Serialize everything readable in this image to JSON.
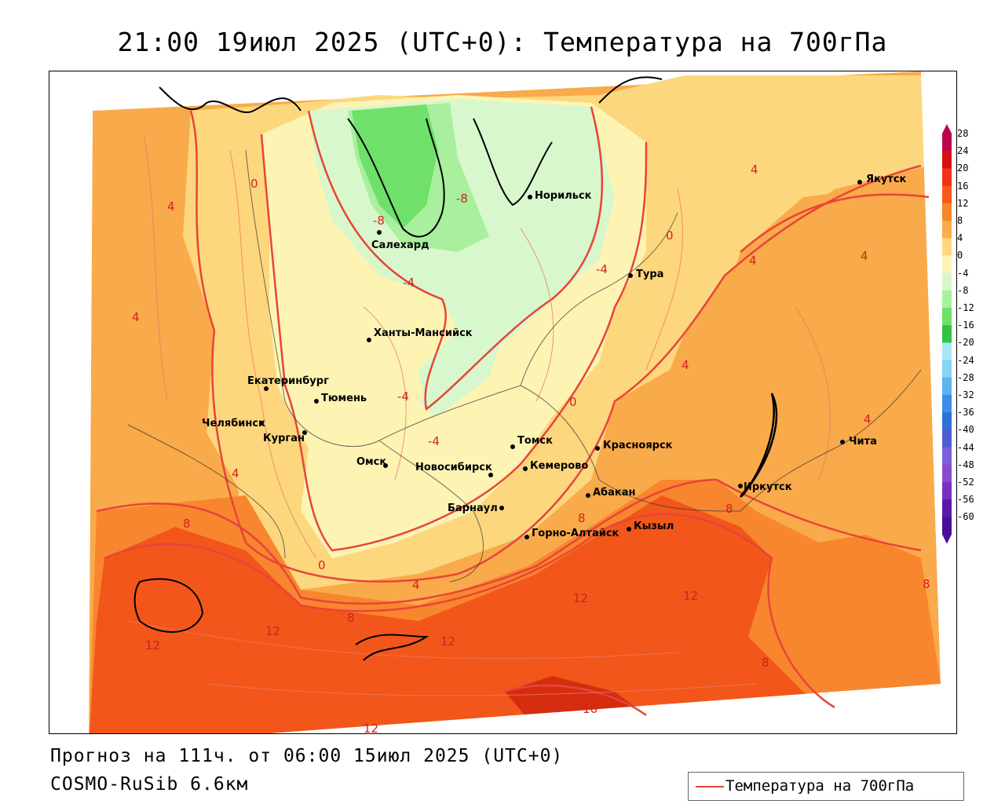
{
  "title": "21:00 19июл 2025 (UTC+0): Температура на 700гПа",
  "footer": {
    "forecast": "Прогноз на 111ч. от 06:00 15июл 2025 (UTC+0)",
    "model": "COSMO-RuSib 6.6км"
  },
  "legend": {
    "label": "Температура на 700гПа",
    "color": "#e8443a"
  },
  "colors": {
    "warm16": "#d52d10",
    "warm12": "#f2561a",
    "warm8": "#f8862e",
    "warm4": "#f9aa4a",
    "warm0": "#fdd77e",
    "neg0": "#fdf4b4",
    "neg4": "#d9f7cc",
    "neg8": "#a8ef9e",
    "neg12": "#6fe06a",
    "isoline": "#e8443a"
  },
  "colorbar": {
    "labels": [
      "28",
      "24",
      "20",
      "16",
      "12",
      "8",
      "4",
      "0",
      "-4",
      "-8",
      "-12",
      "-16",
      "-20",
      "-24",
      "-28",
      "-32",
      "-36",
      "-40",
      "-44",
      "-48",
      "-52",
      "-56",
      "-60"
    ],
    "colors": [
      "#c0004c",
      "#d80f12",
      "#f03315",
      "#f65a1a",
      "#f88528",
      "#f9ac48",
      "#fdd77e",
      "#fdf4b4",
      "#d9f7cc",
      "#a8ef9e",
      "#6fe06a",
      "#2fc441",
      "#a8e7f5",
      "#86d3f2",
      "#5cb3ef",
      "#3d8ee6",
      "#2f6fd8",
      "#4e5cd4",
      "#7a60dc",
      "#8a4bd0",
      "#7a2fc2",
      "#5a1aa8",
      "#4a0f98"
    ]
  },
  "cities": [
    {
      "name": "Якутск"
    },
    {
      "name": "Норильск"
    },
    {
      "name": "Салехард"
    },
    {
      "name": "Тура"
    },
    {
      "name": "Ханты-Мансийск"
    },
    {
      "name": "Екатеринбург"
    },
    {
      "name": "Тюмень"
    },
    {
      "name": "Челябинск"
    },
    {
      "name": "Курган"
    },
    {
      "name": "Омск"
    },
    {
      "name": "Новосибирск"
    },
    {
      "name": "Томск"
    },
    {
      "name": "Кемерово"
    },
    {
      "name": "Красноярск"
    },
    {
      "name": "Барнаул"
    },
    {
      "name": "Абакан"
    },
    {
      "name": "Горно-Алтайск"
    },
    {
      "name": "Кызыл"
    },
    {
      "name": "Иркутск"
    },
    {
      "name": "Чита"
    }
  ],
  "isolabels": [
    {
      "text": "0"
    },
    {
      "text": "4"
    },
    {
      "text": "4"
    },
    {
      "text": "-8"
    },
    {
      "text": "-8"
    },
    {
      "text": "-4"
    },
    {
      "text": "-4"
    },
    {
      "text": "0"
    },
    {
      "text": "4"
    },
    {
      "text": "4"
    },
    {
      "text": "4"
    },
    {
      "text": "4"
    },
    {
      "text": "-4"
    },
    {
      "text": "0"
    },
    {
      "text": "-4"
    },
    {
      "text": "4"
    },
    {
      "text": "4"
    },
    {
      "text": "8"
    },
    {
      "text": "0"
    },
    {
      "text": "4"
    },
    {
      "text": "8"
    },
    {
      "text": "8"
    },
    {
      "text": "8"
    },
    {
      "text": "12"
    },
    {
      "text": "12"
    },
    {
      "text": "12"
    },
    {
      "text": "12"
    },
    {
      "text": "12"
    },
    {
      "text": "8"
    },
    {
      "text": "8"
    },
    {
      "text": "16"
    },
    {
      "text": "12"
    },
    {
      "text": "4"
    }
  ]
}
